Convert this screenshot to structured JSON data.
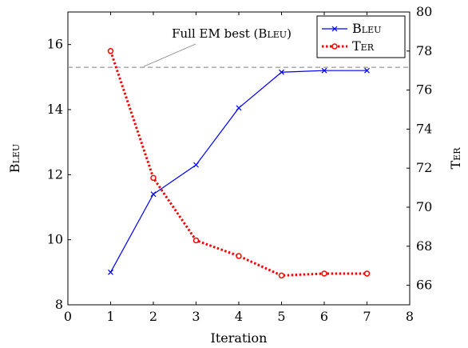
{
  "chart_data": {
    "type": "line",
    "xlabel": "Iteration",
    "ylabel_left": "Bleu",
    "ylabel_right": "Ter",
    "xlim": [
      0,
      8
    ],
    "ylim_left": [
      8,
      17
    ],
    "ylim_right": [
      65,
      80
    ],
    "x_ticks": [
      0,
      1,
      2,
      3,
      4,
      5,
      6,
      7,
      8
    ],
    "y_ticks_left": [
      8,
      10,
      12,
      14,
      16
    ],
    "y_ticks_right": [
      66,
      68,
      70,
      72,
      74,
      76,
      78,
      80
    ],
    "legend_position": "top-right",
    "series": [
      {
        "name": "Bleu",
        "axis": "left",
        "color": "#0000ff",
        "marker": "x",
        "line_style": "solid",
        "x": [
          1,
          2,
          3,
          4,
          5,
          6,
          7
        ],
        "y": [
          9.0,
          11.4,
          12.3,
          14.05,
          15.15,
          15.2,
          15.2
        ]
      },
      {
        "name": "Ter",
        "axis": "right",
        "color": "#ff0000",
        "marker": "circle",
        "line_style": "dotted",
        "x": [
          1,
          2,
          3,
          4,
          5,
          6,
          7
        ],
        "y": [
          78.0,
          71.5,
          68.3,
          67.5,
          66.5,
          66.6,
          66.6
        ]
      }
    ],
    "reference_line": {
      "axis": "left",
      "y": 15.3,
      "color": "#808080",
      "line_style": "dashed",
      "label": "Full EM best (Bleu)"
    }
  }
}
